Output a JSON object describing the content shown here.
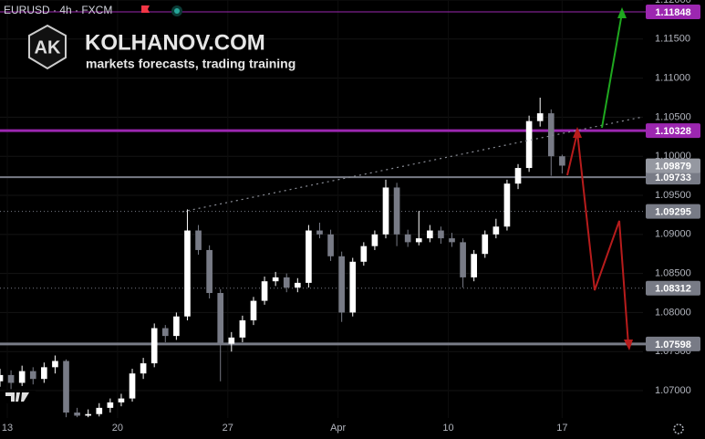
{
  "chart_data": {
    "type": "candlestick",
    "symbol": "EURUSD · 4h · FXCM",
    "brand": {
      "logo": "AK",
      "name": "KOLHANOV.COM",
      "tagline": "markets forecasts, trading training"
    },
    "up_color": "#ffffff",
    "down_color": "#787b86",
    "grid": true,
    "xlim": [
      0,
      175
    ],
    "ylim": [
      1.0665,
      1.12
    ],
    "xticks": [
      {
        "value": 2,
        "label": "13"
      },
      {
        "value": 32,
        "label": "20"
      },
      {
        "value": 62,
        "label": "27"
      },
      {
        "value": 92,
        "label": "Apr"
      },
      {
        "value": 122,
        "label": "10"
      },
      {
        "value": 153,
        "label": "17"
      }
    ],
    "yticks": [
      {
        "value": 1.07,
        "label": "1.07000"
      },
      {
        "value": 1.075,
        "label": "1.07500"
      },
      {
        "value": 1.08,
        "label": "1.08000"
      },
      {
        "value": 1.085,
        "label": "1.08500"
      },
      {
        "value": 1.09,
        "label": "1.09000"
      },
      {
        "value": 1.095,
        "label": "1.09500"
      },
      {
        "value": 1.1,
        "label": "1.10000"
      },
      {
        "value": 1.105,
        "label": "1.10500"
      },
      {
        "value": 1.11,
        "label": "1.11000"
      },
      {
        "value": 1.115,
        "label": "1.11500"
      },
      {
        "value": 1.12,
        "label": "1.12000"
      }
    ],
    "levels": [
      {
        "price": 1.11848,
        "color": "#9c27b0",
        "style": "solid",
        "width": 1
      },
      {
        "price": 1.10328,
        "color": "#9c27b0",
        "style": "solid",
        "width": 3
      },
      {
        "price": 1.09733,
        "color": "#787b86",
        "style": "solid",
        "width": 2
      },
      {
        "price": 1.09295,
        "color": "#787b86",
        "style": "dotted",
        "width": 1
      },
      {
        "price": 1.08312,
        "color": "#787b86",
        "style": "dotted",
        "width": 1
      },
      {
        "price": 1.07598,
        "color": "#787b86",
        "style": "solid",
        "width": 3
      },
      {
        "price": 1.09879,
        "color": "#9598a1",
        "style": "none",
        "width": 0
      }
    ],
    "x": [
      0,
      3,
      6,
      9,
      12,
      15,
      18,
      21,
      24,
      27,
      30,
      33,
      36,
      39,
      42,
      45,
      48,
      51,
      54,
      57,
      60,
      63,
      66,
      69,
      72,
      75,
      78,
      81,
      84,
      87,
      90,
      93,
      96,
      99,
      102,
      105,
      108,
      111,
      114,
      117,
      120,
      123,
      126,
      129,
      132,
      135,
      138,
      141,
      144,
      147,
      150,
      153
    ],
    "ohlc": [
      [
        1.0712,
        1.0728,
        1.0705,
        1.072
      ],
      [
        1.072,
        1.0726,
        1.0702,
        1.071
      ],
      [
        1.071,
        1.0732,
        1.0706,
        1.0725
      ],
      [
        1.0725,
        1.073,
        1.0708,
        1.0715
      ],
      [
        1.0715,
        1.0736,
        1.071,
        1.073
      ],
      [
        1.073,
        1.0745,
        1.0722,
        1.0738
      ],
      [
        1.0738,
        1.074,
        1.0666,
        1.0672
      ],
      [
        1.0672,
        1.0678,
        1.0666,
        1.0668
      ],
      [
        1.0668,
        1.0676,
        1.0666,
        1.067
      ],
      [
        1.067,
        1.0684,
        1.0667,
        1.0678
      ],
      [
        1.0678,
        1.069,
        1.0672,
        1.0685
      ],
      [
        1.0685,
        1.0696,
        1.068,
        1.069
      ],
      [
        1.069,
        1.0728,
        1.0686,
        1.0722
      ],
      [
        1.0722,
        1.0742,
        1.0715,
        1.0735
      ],
      [
        1.0735,
        1.0786,
        1.073,
        1.078
      ],
      [
        1.078,
        1.0784,
        1.0762,
        1.077
      ],
      [
        1.077,
        1.08,
        1.0765,
        1.0795
      ],
      [
        1.0795,
        1.0932,
        1.079,
        1.0905
      ],
      [
        1.0905,
        1.0912,
        1.0874,
        1.088
      ],
      [
        1.088,
        1.0886,
        1.0818,
        1.0825
      ],
      [
        1.0825,
        1.083,
        1.0712,
        1.076
      ],
      [
        1.076,
        1.0775,
        1.075,
        1.0768
      ],
      [
        1.0768,
        1.0796,
        1.0762,
        1.079
      ],
      [
        1.079,
        1.082,
        1.0784,
        1.0815
      ],
      [
        1.0815,
        1.0846,
        1.081,
        1.084
      ],
      [
        1.084,
        1.0852,
        1.0834,
        1.0845
      ],
      [
        1.0845,
        1.085,
        1.0826,
        1.0832
      ],
      [
        1.0832,
        1.0844,
        1.0826,
        1.0838
      ],
      [
        1.0838,
        1.0912,
        1.0832,
        1.0905
      ],
      [
        1.0905,
        1.0915,
        1.0895,
        1.09
      ],
      [
        1.09,
        1.0906,
        1.0866,
        1.0872
      ],
      [
        1.0872,
        1.0878,
        1.0788,
        1.08
      ],
      [
        1.08,
        1.087,
        1.0795,
        1.0865
      ],
      [
        1.0865,
        1.089,
        1.086,
        1.0885
      ],
      [
        1.0885,
        1.0905,
        1.088,
        1.09
      ],
      [
        1.09,
        1.097,
        1.0895,
        1.096
      ],
      [
        1.096,
        1.0966,
        1.0885,
        1.09
      ],
      [
        1.09,
        1.0906,
        1.0884,
        1.089
      ],
      [
        1.089,
        1.093,
        1.0886,
        1.0895
      ],
      [
        1.0895,
        1.0912,
        1.089,
        1.0905
      ],
      [
        1.0905,
        1.091,
        1.0888,
        1.0895
      ],
      [
        1.0895,
        1.0902,
        1.0884,
        1.089
      ],
      [
        1.089,
        1.0895,
        1.0832,
        1.0845
      ],
      [
        1.0845,
        1.088,
        1.084,
        1.0875
      ],
      [
        1.0875,
        1.0905,
        1.087,
        1.09
      ],
      [
        1.09,
        1.092,
        1.0895,
        1.091
      ],
      [
        1.091,
        1.097,
        1.0905,
        1.0965
      ],
      [
        1.0965,
        1.099,
        1.0958,
        1.0985
      ],
      [
        1.0985,
        1.1052,
        1.098,
        1.1045
      ],
      [
        1.1045,
        1.1075,
        1.1038,
        1.1055
      ],
      [
        1.1055,
        1.106,
        1.0975,
        1.1
      ],
      [
        1.1,
        1.1002,
        1.0978,
        1.0988
      ]
    ]
  }
}
